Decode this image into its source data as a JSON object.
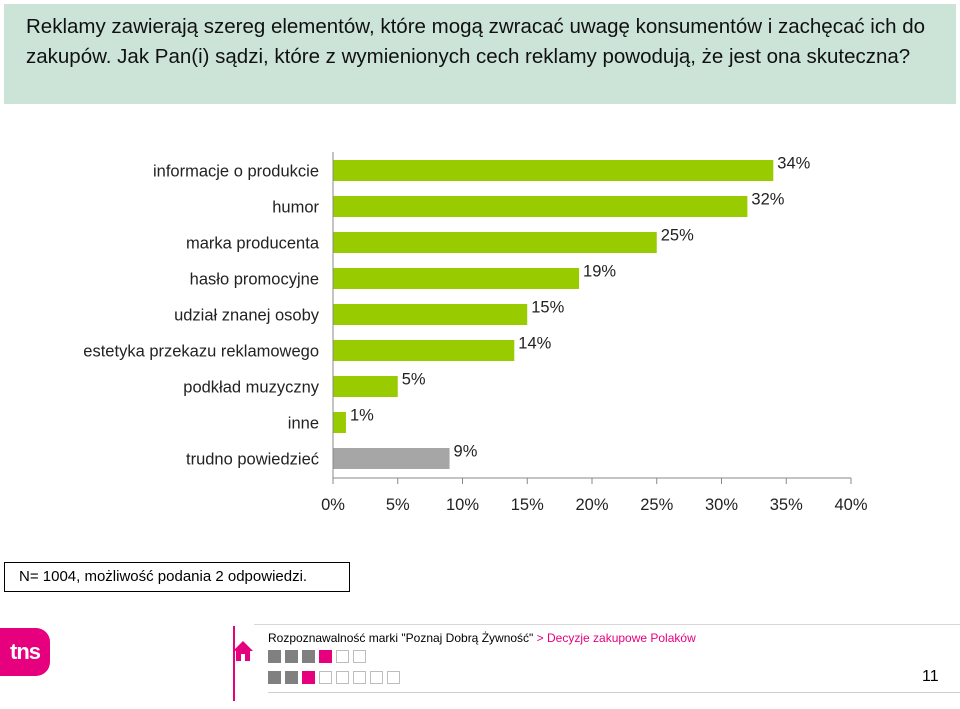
{
  "question": "Reklamy zawierają szereg elementów, które mogą zwracać uwagę konsumentów i zachęcać ich do zakupów. Jak Pan(i) sądzi, które z wymienionych cech reklamy powodują, że jest ona skuteczna?",
  "chart_data": {
    "type": "bar",
    "orientation": "horizontal",
    "categories": [
      "informacje o produkcie",
      "humor",
      "marka producenta",
      "hasło promocyjne",
      "udział znanej osoby",
      "estetyka przekazu reklamowego",
      "podkład muzyczny",
      "inne",
      "trudno powiedzieć"
    ],
    "values": [
      34,
      32,
      25,
      19,
      15,
      14,
      5,
      1,
      9
    ],
    "value_labels": [
      "34%",
      "32%",
      "25%",
      "19%",
      "15%",
      "14%",
      "5%",
      "1%",
      "9%"
    ],
    "bar_colors": [
      "#99cc00",
      "#99cc00",
      "#99cc00",
      "#99cc00",
      "#99cc00",
      "#99cc00",
      "#99cc00",
      "#99cc00",
      "#a6a6a6"
    ],
    "xlim": [
      0,
      40
    ],
    "x_ticks": [
      "0%",
      "5%",
      "10%",
      "15%",
      "20%",
      "25%",
      "30%",
      "35%",
      "40%"
    ],
    "grid": false,
    "legend": "none"
  },
  "note": "N= 1004, możliwość podania 2 odpowiedzi.",
  "footer": {
    "logo_text": "tns",
    "breadcrumb_main": "Rozpoznawalność marki \"Poznaj Dobrą Żywność\"",
    "breadcrumb_sep": ">",
    "breadcrumb_section": "Decyzje zakupowe Polaków",
    "page_number": "11",
    "accent_color": "#e6007e",
    "nav_row1": [
      "dark",
      "dark",
      "dark",
      "pink",
      "light",
      "light"
    ],
    "nav_row2": [
      "dark",
      "dark",
      "pink",
      "light",
      "light",
      "light",
      "light",
      "light"
    ]
  }
}
